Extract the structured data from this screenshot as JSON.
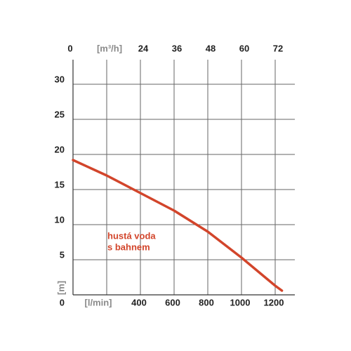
{
  "chart_data": {
    "type": "line",
    "x": [
      0,
      200,
      400,
      600,
      800,
      1000,
      1100,
      1200,
      1240
    ],
    "series": [
      {
        "name": "hustá voda s bahnem",
        "color": "#d2452b",
        "values": [
          19.2,
          17.0,
          14.5,
          12.0,
          9.0,
          5.3,
          3.3,
          1.3,
          0.6
        ]
      }
    ],
    "annotation": [
      "hustá voda",
      "s bahnem"
    ],
    "ylabel": "[m]",
    "xlim": [
      0,
      1300
    ],
    "xticks": [
      {
        "value": 200,
        "label": "[l/min]"
      },
      400,
      600,
      800,
      1000,
      1200
    ],
    "x2lim": [
      0,
      78
    ],
    "x2ticks": [
      0,
      {
        "value": 12,
        "label": "[m³/h]"
      },
      24,
      36,
      48,
      60,
      72
    ],
    "ylim": [
      0,
      33.5
    ],
    "yticks": [
      0,
      5,
      10,
      15,
      20,
      25,
      30
    ],
    "grid": true
  }
}
